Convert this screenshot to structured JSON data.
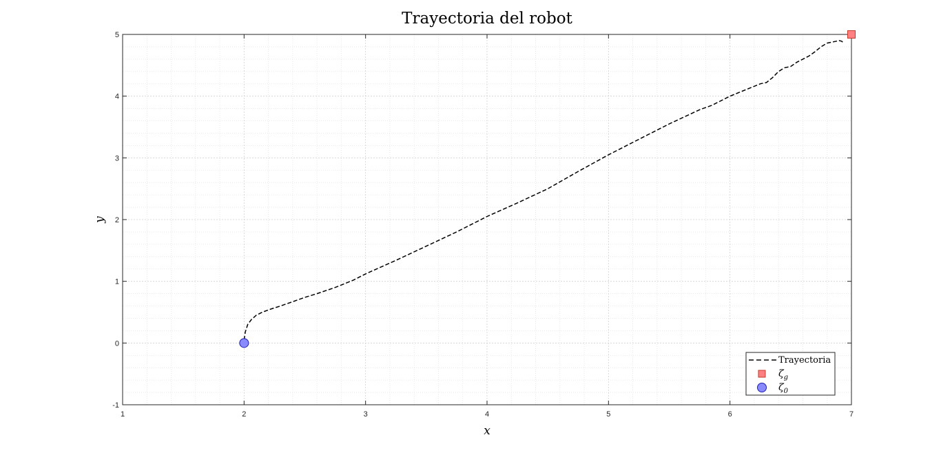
{
  "chart_data": {
    "type": "line",
    "title": "Trayectoria del robot",
    "xlabel": "x",
    "ylabel": "y",
    "xlim": [
      1,
      7
    ],
    "ylim": [
      -1,
      5
    ],
    "xticks": [
      "1",
      "2",
      "3",
      "4",
      "5",
      "6",
      "7"
    ],
    "yticks": [
      "-1",
      "0",
      "1",
      "2",
      "3",
      "4",
      "5"
    ],
    "grid": true,
    "minor_grid": true,
    "legend_position": "bottom-right",
    "series": [
      {
        "name": "Trayectoria",
        "style": "dashed",
        "color": "#000000",
        "x": [
          2.0,
          2.01,
          2.03,
          2.06,
          2.1,
          2.15,
          2.22,
          2.3,
          2.4,
          2.5,
          2.6,
          2.75,
          2.9,
          3.0,
          3.25,
          3.5,
          3.75,
          4.0,
          4.25,
          4.5,
          4.75,
          5.0,
          5.25,
          5.5,
          5.75,
          5.85,
          6.0,
          6.1,
          6.15,
          6.25,
          6.3,
          6.35,
          6.4,
          6.45,
          6.5,
          6.55,
          6.6,
          6.65,
          6.7,
          6.75,
          6.8,
          6.85,
          6.9,
          6.92,
          6.93
        ],
        "y": [
          0.05,
          0.18,
          0.3,
          0.38,
          0.45,
          0.5,
          0.55,
          0.6,
          0.67,
          0.74,
          0.8,
          0.9,
          1.02,
          1.12,
          1.34,
          1.57,
          1.8,
          2.05,
          2.27,
          2.5,
          2.78,
          3.05,
          3.3,
          3.55,
          3.78,
          3.85,
          4.0,
          4.08,
          4.12,
          4.2,
          4.22,
          4.3,
          4.4,
          4.46,
          4.48,
          4.55,
          4.6,
          4.65,
          4.72,
          4.8,
          4.86,
          4.88,
          4.9,
          4.89,
          4.87
        ]
      }
    ],
    "markers": [
      {
        "name": "ζ",
        "subscript": "g",
        "shape": "square",
        "color": "#FF8080",
        "edge": "#C0392B",
        "x": 7,
        "y": 5
      },
      {
        "name": "ζ",
        "subscript": "0",
        "shape": "circle",
        "color": "#8A8AFF",
        "edge": "#1F1FB0",
        "x": 2,
        "y": 0
      }
    ],
    "legend": [
      {
        "label": "Trayectoria"
      },
      {
        "label": "ζ",
        "sub": "g"
      },
      {
        "label": "ζ",
        "sub": "0"
      }
    ]
  }
}
